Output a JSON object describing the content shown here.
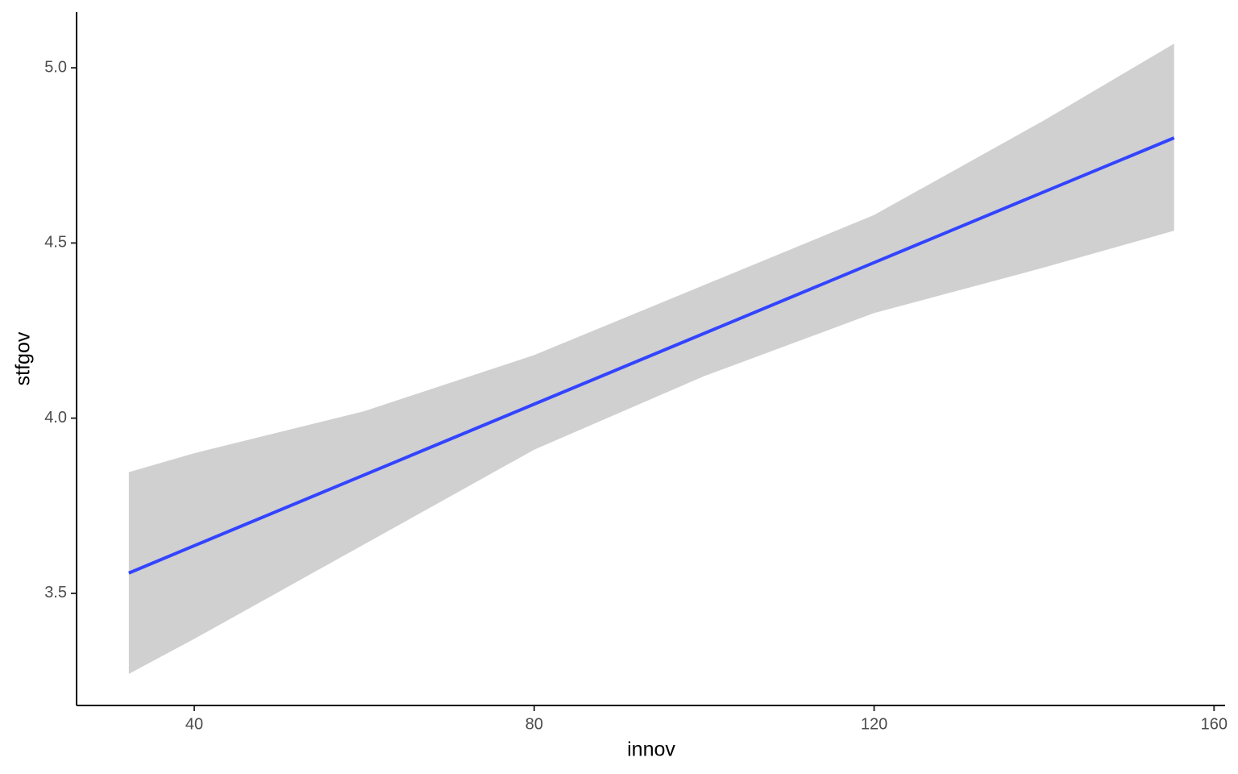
{
  "chart_data": {
    "type": "line",
    "x_label": "innov",
    "y_label": "stfgov",
    "x": [
      32.3,
      40,
      60,
      80,
      100,
      120,
      140,
      155.3
    ],
    "values": [
      3.558,
      3.636,
      3.838,
      4.04,
      4.242,
      4.444,
      4.646,
      4.8
    ],
    "upper": [
      3.846,
      3.9,
      4.02,
      4.18,
      4.38,
      4.58,
      4.85,
      5.069
    ],
    "lower": [
      3.27,
      3.37,
      3.64,
      3.91,
      4.12,
      4.3,
      4.43,
      4.535
    ],
    "color": "#3344ff",
    "band_color": "#d0d0d0",
    "xlim": [
      26.15,
      161.3
    ],
    "xticks": [
      40,
      80,
      120,
      160
    ],
    "ylim": [
      3.18,
      5.159
    ],
    "yticks": [
      3.5,
      {
        "value": 4,
        "label": "4.0"
      },
      4.5,
      {
        "value": 5,
        "label": "5.0"
      }
    ],
    "grid": false
  }
}
